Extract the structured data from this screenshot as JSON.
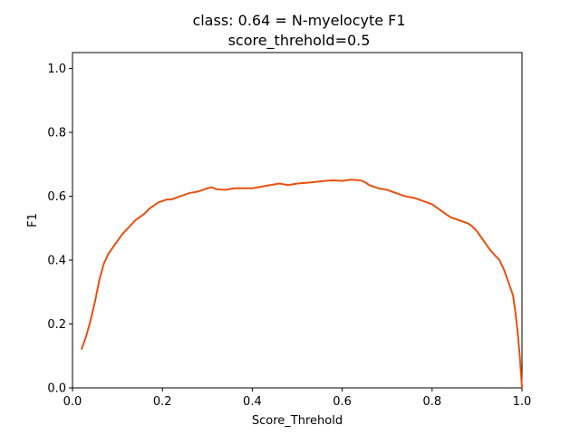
{
  "chart_data": {
    "type": "line",
    "title": "class: 0.64 = N-myelocyte F1",
    "subtitle": "score_threhold=0.5",
    "xlabel": "Score_Threhold",
    "ylabel": "F1",
    "xlim": [
      0.0,
      1.0
    ],
    "ylim": [
      0.0,
      1.05
    ],
    "xticks": [
      "0.0",
      "0.2",
      "0.4",
      "0.6",
      "0.8",
      "1.0"
    ],
    "yticks": [
      "0.0",
      "0.2",
      "0.4",
      "0.6",
      "0.8",
      "1.0"
    ],
    "grid": false,
    "line_color": "#e8500f",
    "series": [
      {
        "x": [
          0.02,
          0.03,
          0.04,
          0.05,
          0.06,
          0.07,
          0.08,
          0.09,
          0.1,
          0.11,
          0.12,
          0.13,
          0.14,
          0.15,
          0.16,
          0.17,
          0.18,
          0.19,
          0.2,
          0.21,
          0.22,
          0.24,
          0.26,
          0.28,
          0.3,
          0.31,
          0.32,
          0.34,
          0.36,
          0.38,
          0.4,
          0.42,
          0.44,
          0.46,
          0.48,
          0.5,
          0.52,
          0.54,
          0.56,
          0.58,
          0.6,
          0.62,
          0.64,
          0.65,
          0.66,
          0.68,
          0.7,
          0.72,
          0.74,
          0.76,
          0.78,
          0.8,
          0.82,
          0.84,
          0.86,
          0.88,
          0.89,
          0.9,
          0.91,
          0.92,
          0.93,
          0.94,
          0.95,
          0.96,
          0.97,
          0.98,
          0.985,
          0.99,
          0.995,
          1.0
        ],
        "y": [
          0.12,
          0.16,
          0.21,
          0.27,
          0.34,
          0.39,
          0.42,
          0.44,
          0.46,
          0.48,
          0.495,
          0.51,
          0.525,
          0.535,
          0.545,
          0.56,
          0.57,
          0.58,
          0.585,
          0.59,
          0.59,
          0.6,
          0.61,
          0.615,
          0.625,
          0.628,
          0.622,
          0.62,
          0.625,
          0.625,
          0.625,
          0.63,
          0.635,
          0.64,
          0.635,
          0.64,
          0.642,
          0.645,
          0.648,
          0.65,
          0.648,
          0.652,
          0.65,
          0.645,
          0.635,
          0.625,
          0.62,
          0.61,
          0.6,
          0.595,
          0.585,
          0.575,
          0.555,
          0.535,
          0.525,
          0.515,
          0.505,
          0.49,
          0.47,
          0.45,
          0.43,
          0.415,
          0.4,
          0.37,
          0.33,
          0.29,
          0.24,
          0.18,
          0.1,
          0.0
        ]
      }
    ]
  }
}
